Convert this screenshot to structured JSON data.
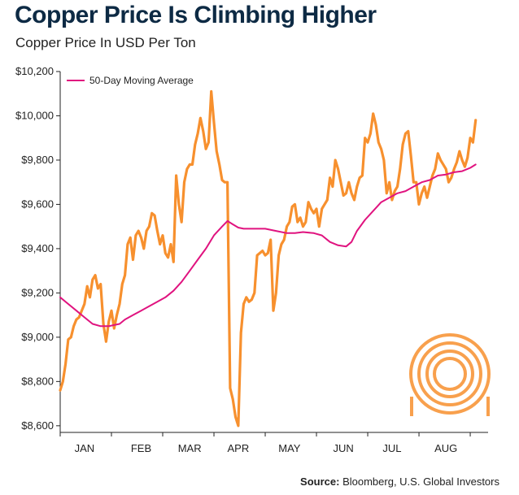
{
  "header": {
    "title": "Copper Price Is Climbing Higher",
    "subtitle": "Copper Price In USD Per Ton"
  },
  "footer": {
    "source_label": "Source:",
    "source_text": "Bloomberg, U.S. Global Investors"
  },
  "colors": {
    "price_line": "#f7902e",
    "moving_average": "#e0137f",
    "axis": "#222222",
    "logo": "#f7902e"
  },
  "logo_icon": "concentric-rings-logo",
  "chart_data": {
    "type": "line",
    "title": "Copper Price Is Climbing Higher",
    "subtitle": "Copper Price In USD Per Ton",
    "xlabel": "",
    "ylabel": "",
    "ylim": [
      8570,
      10200
    ],
    "xlim": [
      0,
      155
    ],
    "y_ticks": [
      8600,
      8800,
      9000,
      9200,
      9400,
      9600,
      9800,
      10000,
      10200
    ],
    "y_tick_labels": [
      "$8,600",
      "$8,800",
      "$9,000",
      "$9,200",
      "$9,400",
      "$9,600",
      "$9,800",
      "$10,000",
      "$10,200"
    ],
    "x_month_labels": [
      {
        "label": "JAN",
        "x": 9
      },
      {
        "label": "FEB",
        "x": 30
      },
      {
        "label": "MAR",
        "x": 48
      },
      {
        "label": "APR",
        "x": 66
      },
      {
        "label": "MAY",
        "x": 85
      },
      {
        "label": "JUN",
        "x": 105
      },
      {
        "label": "JUL",
        "x": 123
      },
      {
        "label": "AUG",
        "x": 143
      }
    ],
    "grid": false,
    "legend_position": "top-left",
    "series": [
      {
        "name": "",
        "color": "#f7902e",
        "points": [
          [
            0,
            8760
          ],
          [
            1,
            8800
          ],
          [
            2,
            8880
          ],
          [
            3,
            8990
          ],
          [
            4,
            9000
          ],
          [
            5,
            9050
          ],
          [
            6,
            9080
          ],
          [
            7,
            9090
          ],
          [
            8,
            9120
          ],
          [
            9,
            9150
          ],
          [
            10,
            9230
          ],
          [
            11,
            9180
          ],
          [
            12,
            9260
          ],
          [
            13,
            9280
          ],
          [
            14,
            9220
          ],
          [
            15,
            9240
          ],
          [
            16,
            9060
          ],
          [
            17,
            8980
          ],
          [
            18,
            9070
          ],
          [
            19,
            9120
          ],
          [
            20,
            9040
          ],
          [
            21,
            9100
          ],
          [
            22,
            9150
          ],
          [
            23,
            9240
          ],
          [
            24,
            9280
          ],
          [
            25,
            9420
          ],
          [
            26,
            9450
          ],
          [
            27,
            9350
          ],
          [
            28,
            9460
          ],
          [
            29,
            9480
          ],
          [
            30,
            9450
          ],
          [
            31,
            9400
          ],
          [
            32,
            9480
          ],
          [
            33,
            9500
          ],
          [
            34,
            9560
          ],
          [
            35,
            9550
          ],
          [
            36,
            9480
          ],
          [
            37,
            9420
          ],
          [
            38,
            9460
          ],
          [
            39,
            9380
          ],
          [
            40,
            9360
          ],
          [
            41,
            9420
          ],
          [
            42,
            9340
          ],
          [
            43,
            9730
          ],
          [
            44,
            9600
          ],
          [
            45,
            9520
          ],
          [
            46,
            9700
          ],
          [
            47,
            9760
          ],
          [
            48,
            9780
          ],
          [
            49,
            9780
          ],
          [
            50,
            9870
          ],
          [
            51,
            9920
          ],
          [
            52,
            9990
          ],
          [
            53,
            9930
          ],
          [
            54,
            9850
          ],
          [
            55,
            9880
          ],
          [
            56,
            10110
          ],
          [
            57,
            9970
          ],
          [
            58,
            9840
          ],
          [
            59,
            9780
          ],
          [
            60,
            9710
          ],
          [
            61,
            9700
          ],
          [
            62,
            9700
          ],
          [
            63,
            8770
          ],
          [
            64,
            8720
          ],
          [
            65,
            8640
          ],
          [
            66,
            8600
          ],
          [
            67,
            9020
          ],
          [
            68,
            9150
          ],
          [
            69,
            9180
          ],
          [
            70,
            9160
          ],
          [
            71,
            9170
          ],
          [
            72,
            9200
          ],
          [
            73,
            9370
          ],
          [
            74,
            9380
          ],
          [
            75,
            9390
          ],
          [
            76,
            9370
          ],
          [
            77,
            9380
          ],
          [
            78,
            9440
          ],
          [
            79,
            9120
          ],
          [
            80,
            9200
          ],
          [
            81,
            9370
          ],
          [
            82,
            9420
          ],
          [
            83,
            9440
          ],
          [
            84,
            9500
          ],
          [
            85,
            9520
          ],
          [
            86,
            9590
          ],
          [
            87,
            9600
          ],
          [
            88,
            9520
          ],
          [
            89,
            9540
          ],
          [
            90,
            9500
          ],
          [
            91,
            9520
          ],
          [
            92,
            9610
          ],
          [
            93,
            9580
          ],
          [
            94,
            9560
          ],
          [
            95,
            9580
          ],
          [
            96,
            9500
          ],
          [
            97,
            9580
          ],
          [
            98,
            9600
          ],
          [
            99,
            9620
          ],
          [
            100,
            9720
          ],
          [
            101,
            9680
          ],
          [
            102,
            9800
          ],
          [
            103,
            9760
          ],
          [
            104,
            9700
          ],
          [
            105,
            9640
          ],
          [
            106,
            9650
          ],
          [
            107,
            9700
          ],
          [
            108,
            9650
          ],
          [
            109,
            9620
          ],
          [
            110,
            9680
          ],
          [
            111,
            9720
          ],
          [
            112,
            9730
          ],
          [
            113,
            9900
          ],
          [
            114,
            9880
          ],
          [
            115,
            9920
          ],
          [
            116,
            10010
          ],
          [
            117,
            9960
          ],
          [
            118,
            9880
          ],
          [
            119,
            9850
          ],
          [
            120,
            9800
          ],
          [
            121,
            9650
          ],
          [
            122,
            9700
          ],
          [
            123,
            9620
          ],
          [
            124,
            9660
          ],
          [
            125,
            9680
          ],
          [
            126,
            9760
          ],
          [
            127,
            9870
          ],
          [
            128,
            9920
          ],
          [
            129,
            9930
          ],
          [
            130,
            9820
          ],
          [
            131,
            9700
          ],
          [
            132,
            9700
          ],
          [
            133,
            9600
          ],
          [
            134,
            9650
          ],
          [
            135,
            9680
          ],
          [
            136,
            9630
          ],
          [
            137,
            9680
          ],
          [
            138,
            9730
          ],
          [
            139,
            9760
          ],
          [
            140,
            9830
          ],
          [
            141,
            9800
          ],
          [
            142,
            9780
          ],
          [
            143,
            9760
          ],
          [
            144,
            9700
          ],
          [
            145,
            9720
          ],
          [
            146,
            9760
          ],
          [
            147,
            9790
          ],
          [
            148,
            9840
          ],
          [
            149,
            9800
          ],
          [
            150,
            9770
          ],
          [
            151,
            9810
          ],
          [
            152,
            9900
          ],
          [
            153,
            9880
          ],
          [
            154,
            9980
          ]
        ]
      },
      {
        "name": "50-Day Moving Average",
        "color": "#e0137f",
        "points": [
          [
            0,
            9180
          ],
          [
            3,
            9150
          ],
          [
            6,
            9120
          ],
          [
            9,
            9090
          ],
          [
            12,
            9060
          ],
          [
            15,
            9050
          ],
          [
            18,
            9050
          ],
          [
            20,
            9055
          ],
          [
            22,
            9060
          ],
          [
            24,
            9080
          ],
          [
            27,
            9100
          ],
          [
            30,
            9120
          ],
          [
            33,
            9140
          ],
          [
            36,
            9160
          ],
          [
            39,
            9180
          ],
          [
            42,
            9210
          ],
          [
            45,
            9250
          ],
          [
            48,
            9300
          ],
          [
            51,
            9350
          ],
          [
            54,
            9400
          ],
          [
            57,
            9460
          ],
          [
            60,
            9500
          ],
          [
            62,
            9525
          ],
          [
            64,
            9510
          ],
          [
            66,
            9495
          ],
          [
            68,
            9490
          ],
          [
            72,
            9490
          ],
          [
            76,
            9490
          ],
          [
            80,
            9480
          ],
          [
            84,
            9470
          ],
          [
            87,
            9470
          ],
          [
            90,
            9475
          ],
          [
            94,
            9470
          ],
          [
            97,
            9460
          ],
          [
            100,
            9430
          ],
          [
            103,
            9415
          ],
          [
            106,
            9410
          ],
          [
            108,
            9430
          ],
          [
            110,
            9480
          ],
          [
            113,
            9530
          ],
          [
            116,
            9570
          ],
          [
            119,
            9610
          ],
          [
            122,
            9630
          ],
          [
            125,
            9650
          ],
          [
            128,
            9660
          ],
          [
            131,
            9680
          ],
          [
            134,
            9700
          ],
          [
            137,
            9710
          ],
          [
            140,
            9730
          ],
          [
            143,
            9735
          ],
          [
            146,
            9745
          ],
          [
            149,
            9750
          ],
          [
            152,
            9765
          ],
          [
            154,
            9780
          ]
        ]
      }
    ]
  }
}
